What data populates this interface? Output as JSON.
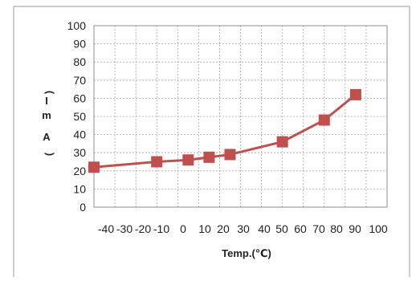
{
  "chart_data": {
    "type": "line",
    "xlabel": "Temp.(℃)",
    "ylabel": "I(mA)",
    "ylabel_parts": [
      "(",
      "I",
      "m",
      "A",
      ")"
    ],
    "xlim": [
      -40,
      100
    ],
    "ylim": [
      0,
      100
    ],
    "x_ticks": [
      -40,
      -30,
      -20,
      -10,
      0,
      10,
      20,
      30,
      40,
      50,
      60,
      70,
      80,
      90,
      100
    ],
    "y_ticks": [
      0,
      10,
      20,
      30,
      40,
      50,
      60,
      70,
      80,
      90,
      100
    ],
    "x_tick_labels": [
      "-40",
      "-30",
      "-20",
      "-10",
      "0",
      "10",
      "20",
      "30",
      "40",
      "50",
      "60",
      "70",
      "80",
      "90",
      "100"
    ],
    "y_tick_labels": [
      "0",
      "10",
      "20",
      "30",
      "40",
      "50",
      "60",
      "70",
      "80",
      "90",
      "100"
    ],
    "grid": true,
    "series": [
      {
        "x": [
          -40,
          -10,
          5,
          15,
          25,
          50,
          70,
          85
        ],
        "y": [
          22,
          25,
          26,
          27.5,
          29,
          36,
          48,
          62
        ],
        "color": "#c0504d",
        "marker": "square"
      }
    ]
  }
}
